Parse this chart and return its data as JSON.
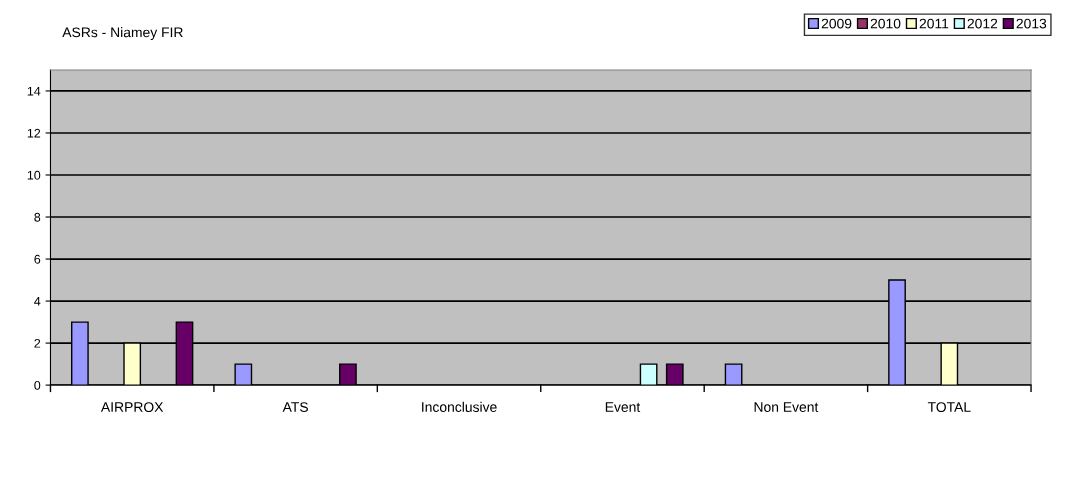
{
  "chart_data": {
    "type": "bar",
    "title": "ASRs - Niamey FIR",
    "categories": [
      "AIRPROX",
      "ATS",
      "Inconclusive",
      "Event",
      "Non Event",
      "TOTAL"
    ],
    "series": [
      {
        "name": "2009",
        "color": "#9999ff",
        "values": [
          3,
          1,
          0,
          0,
          1,
          5
        ]
      },
      {
        "name": "2010",
        "color": "#993366",
        "values": [
          0,
          0,
          0,
          0,
          0,
          0
        ]
      },
      {
        "name": "2011",
        "color": "#ffffcc",
        "values": [
          2,
          0,
          0,
          0,
          0,
          2
        ]
      },
      {
        "name": "2012",
        "color": "#ccffff",
        "values": [
          0,
          0,
          0,
          1,
          0,
          0
        ]
      },
      {
        "name": "2013",
        "color": "#660066",
        "values": [
          3,
          1,
          0,
          1,
          0,
          0
        ]
      }
    ],
    "ylim": [
      0,
      15
    ],
    "yticks": [
      0,
      2,
      4,
      6,
      8,
      10,
      12,
      14
    ],
    "grid": "y",
    "legend": "top right"
  }
}
